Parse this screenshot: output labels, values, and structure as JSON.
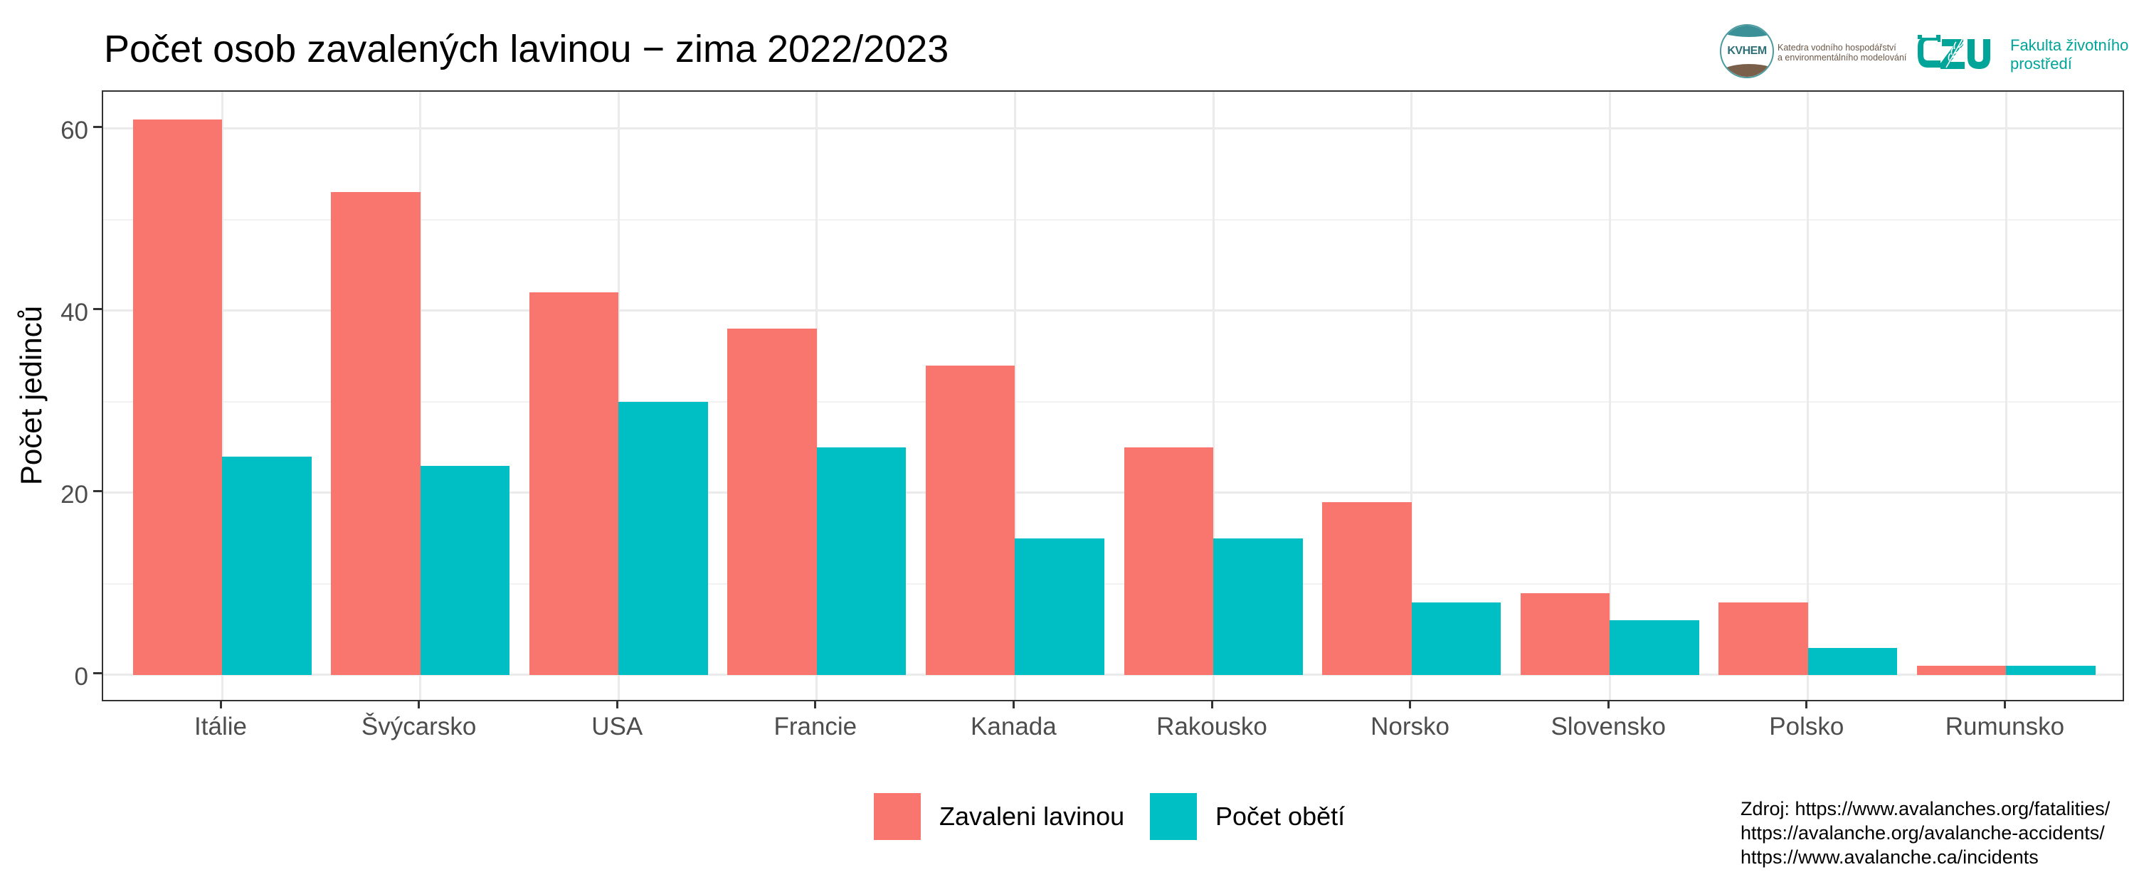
{
  "header": {
    "title": "Počet osob zavalených lavinou − zima 2022/2023",
    "logos": {
      "kvhem": {
        "mark": "KVHEM",
        "line1": "Katedra vodního hospodářství",
        "line2": "a environmentálního modelování"
      },
      "czu": {
        "mark": "ČZU",
        "line1": "Fakulta životního",
        "line2": "prostředí",
        "color": "#00a499"
      }
    }
  },
  "colors": {
    "series1": "#F8766D",
    "series2": "#00BFC4",
    "panel_border": "#333333",
    "grid": "#EBEBEB",
    "axis_text": "#4D4D4D"
  },
  "source": {
    "line1": "Zdroj: https://www.avalanches.org/fatalities/",
    "line2": "https://avalanche.org/avalanche-accidents/",
    "line3": "https://www.avalanche.ca/incidents"
  },
  "chart_data": {
    "type": "bar",
    "title": "Počet osob zavalených lavinou − zima 2022/2023",
    "xlabel": "",
    "ylabel": "Počet jedinců",
    "categories": [
      "Itálie",
      "Švýcarsko",
      "USA",
      "Francie",
      "Kanada",
      "Rakousko",
      "Norsko",
      "Slovensko",
      "Polsko",
      "Rumunsko"
    ],
    "series": [
      {
        "name": "Zavaleni lavinou",
        "color": "#F8766D",
        "values": [
          61,
          53,
          42,
          38,
          34,
          25,
          19,
          9,
          8,
          1
        ]
      },
      {
        "name": "Počet obětí",
        "color": "#00BFC4",
        "values": [
          24,
          23,
          30,
          25,
          15,
          15,
          8,
          6,
          3,
          1
        ]
      }
    ],
    "yticks": [
      0,
      20,
      40,
      60
    ],
    "yticks_minor": [
      10,
      30,
      50
    ],
    "ylim": [
      -3.05,
      64.05
    ],
    "grid": true,
    "legend_position": "bottom",
    "barmode": "grouped"
  }
}
